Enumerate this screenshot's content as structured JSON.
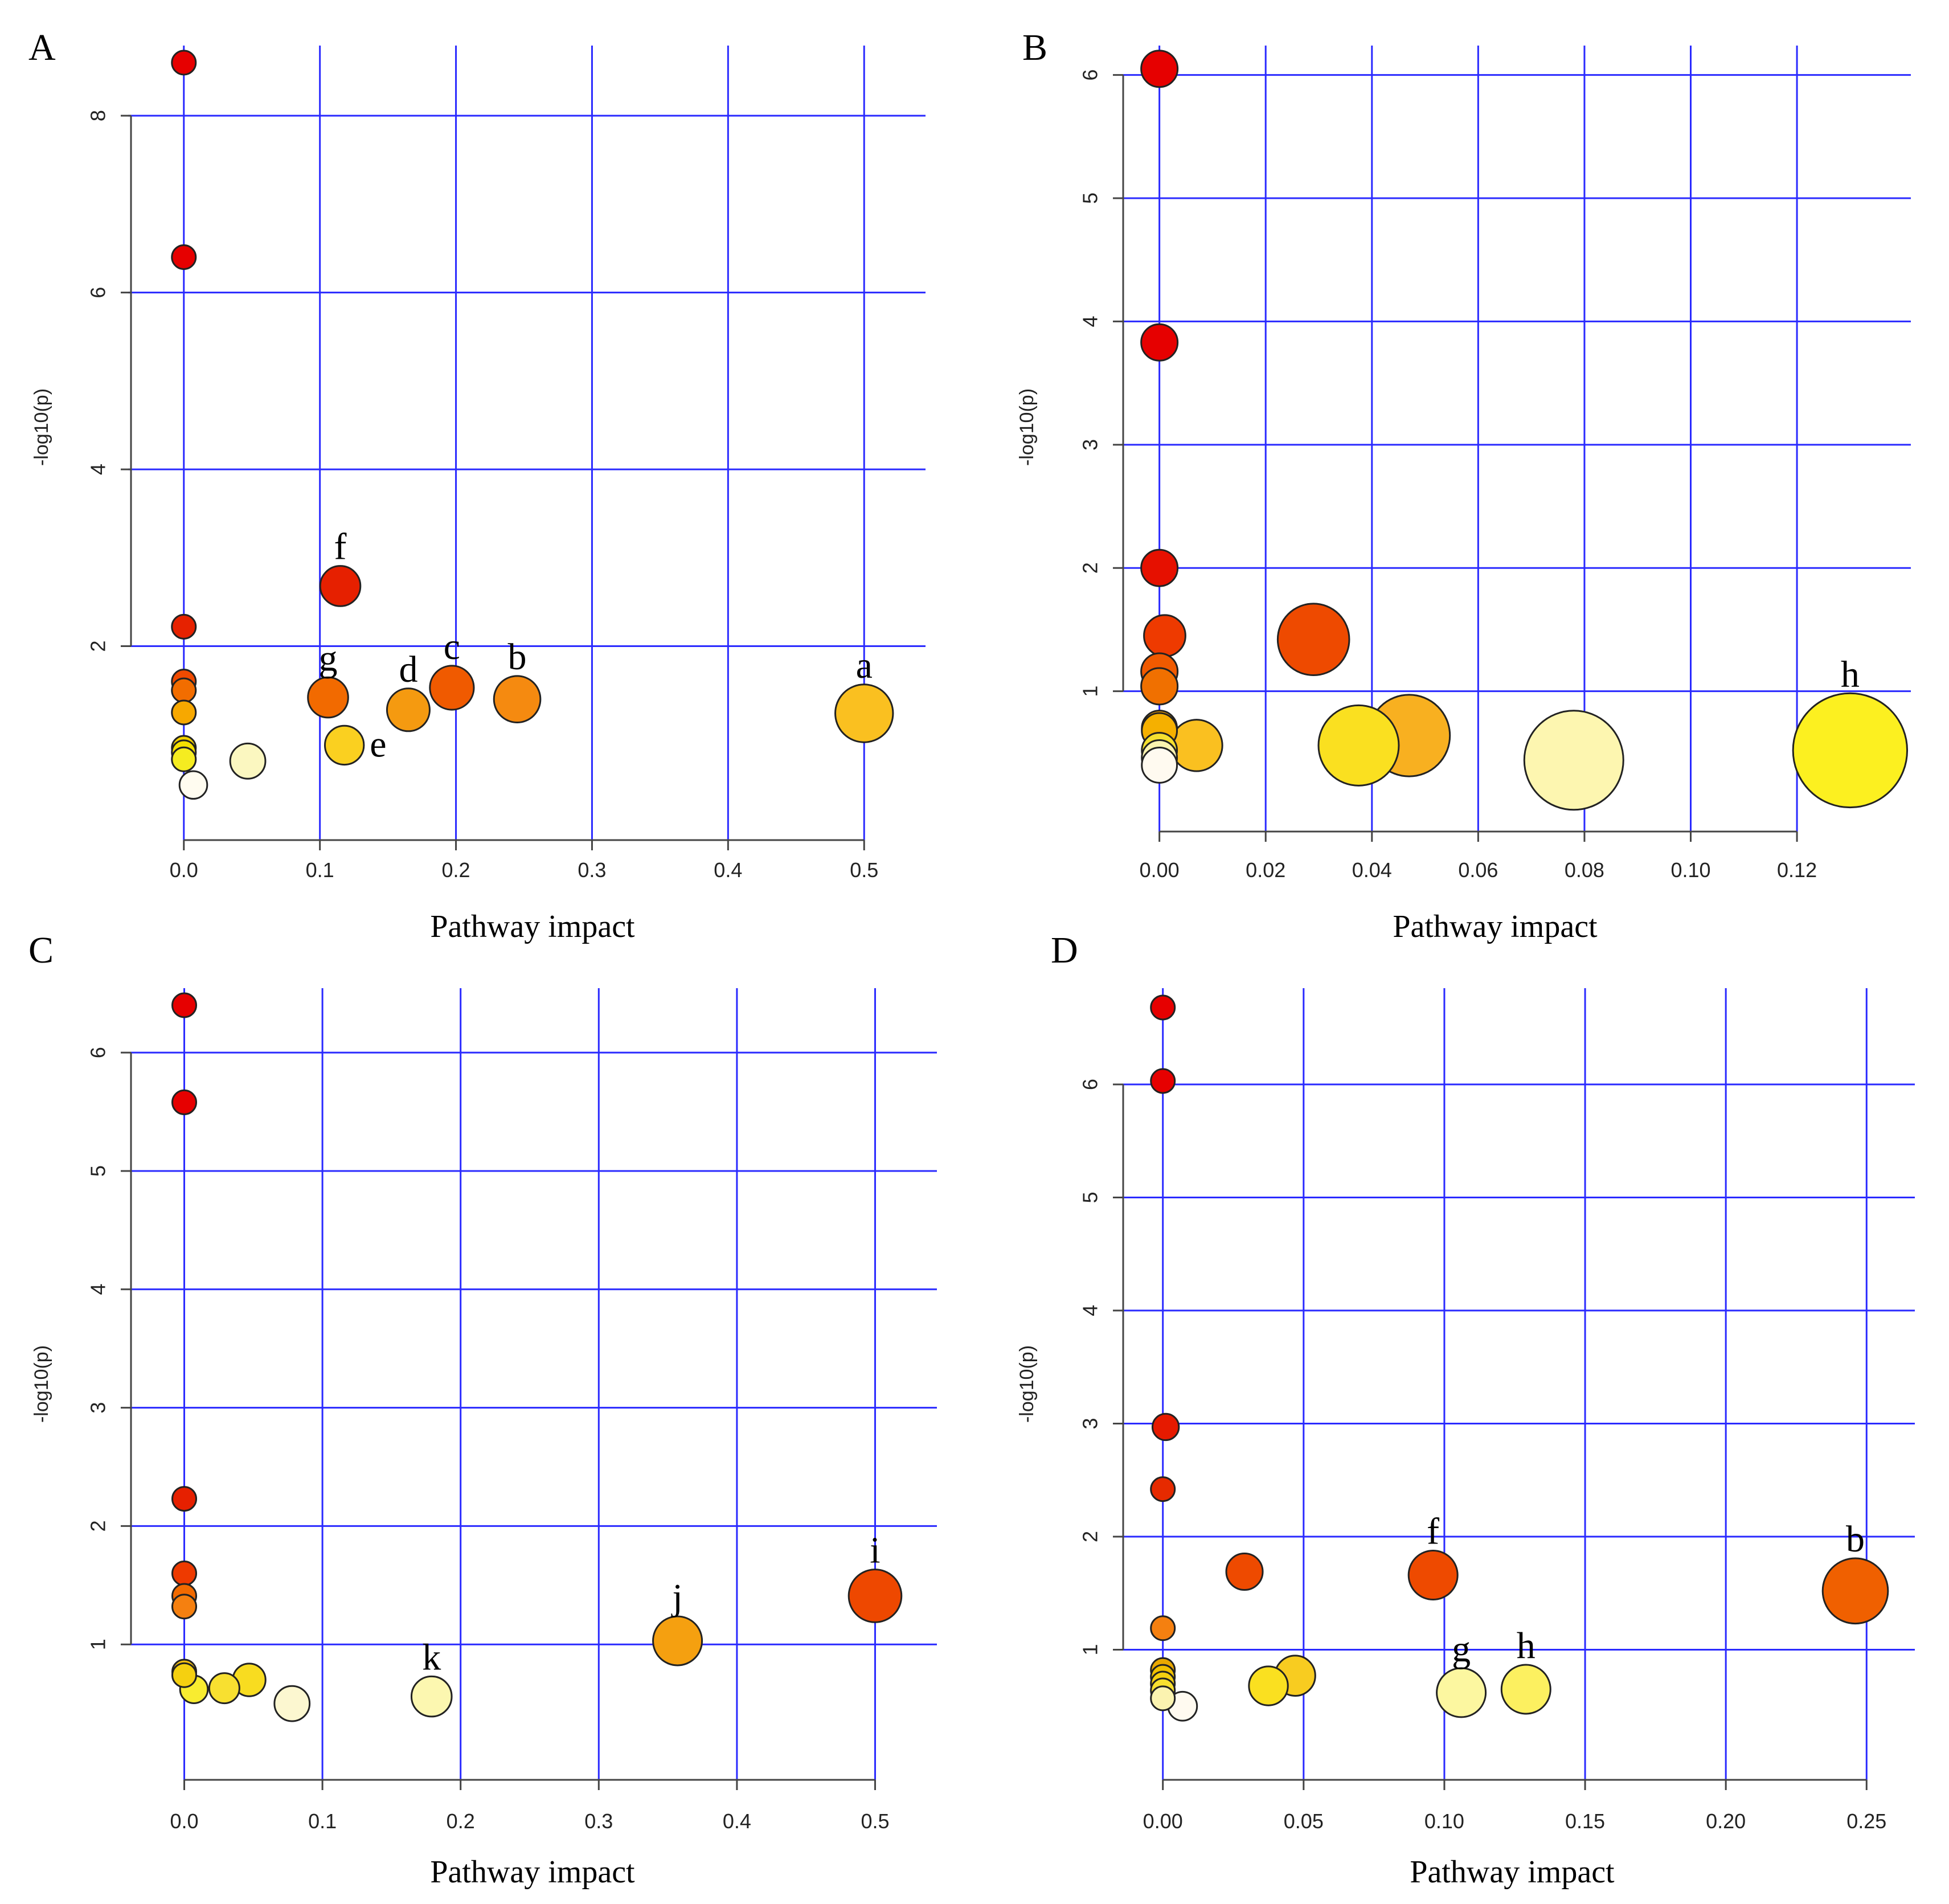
{
  "chart_data": [
    {
      "type": "scatter",
      "panel": "A",
      "xlabel": "Pathway impact",
      "ylabel": "-log10(p)",
      "xlim": [
        -0.02,
        0.52
      ],
      "ylim": [
        0,
        8.6
      ],
      "xticks": [
        0.0,
        0.1,
        0.2,
        0.3,
        0.4,
        0.5
      ],
      "xtick_labels": [
        "0.0",
        "0.1",
        "0.2",
        "0.3",
        "0.4",
        "0.5"
      ],
      "yticks": [
        2,
        4,
        6,
        8
      ],
      "ytick_labels": [
        "2",
        "4",
        "6",
        "8"
      ],
      "points": [
        {
          "x": 0.0,
          "y": 8.6,
          "size": 1,
          "color": "#e60000",
          "label": ""
        },
        {
          "x": 0.0,
          "y": 6.4,
          "size": 1,
          "color": "#e60000",
          "label": ""
        },
        {
          "x": 0.0,
          "y": 2.22,
          "size": 1,
          "color": "#e62200",
          "label": ""
        },
        {
          "x": 0.0,
          "y": 1.6,
          "size": 1,
          "color": "#f04a00",
          "label": ""
        },
        {
          "x": 0.0,
          "y": 1.5,
          "size": 1,
          "color": "#f26d00",
          "label": ""
        },
        {
          "x": 0.0,
          "y": 1.25,
          "size": 1,
          "color": "#f7a800",
          "label": ""
        },
        {
          "x": 0.0,
          "y": 0.85,
          "size": 1,
          "color": "#f2d000",
          "label": ""
        },
        {
          "x": 0.0,
          "y": 0.8,
          "size": 1,
          "color": "#f5e000",
          "label": ""
        },
        {
          "x": 0.0,
          "y": 0.72,
          "size": 1,
          "color": "#f5ec20",
          "label": ""
        },
        {
          "x": 0.007,
          "y": 0.43,
          "size": 1.3,
          "color": "#fffcf0",
          "label": ""
        },
        {
          "x": 0.047,
          "y": 0.7,
          "size": 1.9,
          "color": "#fbf7c0",
          "label": ""
        },
        {
          "x": 0.115,
          "y": 2.68,
          "size": 2.3,
          "color": "#e62000",
          "label": "f"
        },
        {
          "x": 0.106,
          "y": 1.42,
          "size": 2.3,
          "color": "#f26a00",
          "label": "g"
        },
        {
          "x": 0.165,
          "y": 1.28,
          "size": 2.5,
          "color": "#f59a10",
          "label": "d"
        },
        {
          "x": 0.118,
          "y": 0.88,
          "size": 2.2,
          "color": "#fad020",
          "label": "e"
        },
        {
          "x": 0.197,
          "y": 1.53,
          "size": 2.6,
          "color": "#f05a00",
          "label": "c"
        },
        {
          "x": 0.245,
          "y": 1.4,
          "size": 2.8,
          "color": "#f58a10",
          "label": "b"
        },
        {
          "x": 0.5,
          "y": 1.24,
          "size": 3.7,
          "color": "#fac020",
          "label": "a"
        }
      ]
    },
    {
      "type": "scatter",
      "panel": "B",
      "xlabel": "Pathway impact",
      "ylabel": "-log10(p)",
      "xlim": [
        -0.002,
        0.135
      ],
      "ylim": [
        0,
        6.1
      ],
      "xticks": [
        0.0,
        0.02,
        0.04,
        0.06,
        0.08,
        0.1,
        0.12
      ],
      "xtick_labels": [
        "0.00",
        "0.02",
        "0.04",
        "0.06",
        "0.08",
        "0.10",
        "0.12"
      ],
      "yticks": [
        1,
        2,
        3,
        4,
        5,
        6
      ],
      "ytick_labels": [
        "1",
        "2",
        "3",
        "4",
        "5",
        "6"
      ],
      "points": [
        {
          "x": 0.0,
          "y": 6.05,
          "size": 2,
          "color": "#e60000",
          "label": ""
        },
        {
          "x": 0.0,
          "y": 3.83,
          "size": 2,
          "color": "#e60000",
          "label": ""
        },
        {
          "x": 0.0,
          "y": 2.0,
          "size": 2,
          "color": "#e61000",
          "label": ""
        },
        {
          "x": 0.001,
          "y": 1.45,
          "size": 2.4,
          "color": "#ee3a00",
          "label": ""
        },
        {
          "x": 0.0,
          "y": 1.16,
          "size": 2,
          "color": "#f05a00",
          "label": ""
        },
        {
          "x": 0.0,
          "y": 1.04,
          "size": 2,
          "color": "#f07000",
          "label": ""
        },
        {
          "x": 0.0,
          "y": 0.7,
          "size": 1.9,
          "color": "#f0a000",
          "label": ""
        },
        {
          "x": 0.0,
          "y": 0.68,
          "size": 1.9,
          "color": "#f5b000",
          "label": ""
        },
        {
          "x": 0.0,
          "y": 0.52,
          "size": 1.9,
          "color": "#f5e030",
          "label": ""
        },
        {
          "x": 0.0,
          "y": 0.46,
          "size": 1.9,
          "color": "#fbf3b0",
          "label": ""
        },
        {
          "x": 0.0,
          "y": 0.4,
          "size": 1.9,
          "color": "#fffaf0",
          "label": ""
        },
        {
          "x": 0.007,
          "y": 0.56,
          "size": 3.2,
          "color": "#fac020",
          "label": ""
        },
        {
          "x": 0.029,
          "y": 1.42,
          "size": 4.8,
          "color": "#ee4a00",
          "label": ""
        },
        {
          "x": 0.0375,
          "y": 0.56,
          "size": 5.5,
          "color": "#fae020",
          "label": ""
        },
        {
          "x": 0.047,
          "y": 0.64,
          "size": 5.6,
          "color": "#f8b020",
          "label": ""
        },
        {
          "x": 0.078,
          "y": 0.44,
          "size": 7.0,
          "color": "#fdf6b0",
          "label": ""
        },
        {
          "x": 0.13,
          "y": 0.52,
          "size": 8.2,
          "color": "#fcf020",
          "label": "h"
        }
      ]
    },
    {
      "type": "scatter",
      "panel": "C",
      "xlabel": "Pathway impact",
      "ylabel": "-log10(p)",
      "xlim": [
        -0.02,
        0.52
      ],
      "ylim": [
        0,
        6.4
      ],
      "xticks": [
        0.0,
        0.1,
        0.2,
        0.3,
        0.4,
        0.5
      ],
      "xtick_labels": [
        "0.0",
        "0.1",
        "0.2",
        "0.3",
        "0.4",
        "0.5"
      ],
      "yticks": [
        1,
        2,
        3,
        4,
        5,
        6
      ],
      "ytick_labels": [
        "1",
        "2",
        "3",
        "4",
        "5",
        "6"
      ],
      "points": [
        {
          "x": 0.0,
          "y": 6.4,
          "size": 1,
          "color": "#e60000",
          "label": ""
        },
        {
          "x": 0.0,
          "y": 5.58,
          "size": 1,
          "color": "#e60000",
          "label": ""
        },
        {
          "x": 0.0,
          "y": 2.23,
          "size": 1,
          "color": "#e62000",
          "label": ""
        },
        {
          "x": 0.0,
          "y": 1.6,
          "size": 1,
          "color": "#ee3a00",
          "label": ""
        },
        {
          "x": 0.0,
          "y": 1.41,
          "size": 1,
          "color": "#f26a00",
          "label": ""
        },
        {
          "x": 0.0,
          "y": 1.32,
          "size": 1,
          "color": "#f58010",
          "label": ""
        },
        {
          "x": 0.0,
          "y": 0.77,
          "size": 1,
          "color": "#f5c010",
          "label": ""
        },
        {
          "x": 0.0,
          "y": 0.74,
          "size": 1,
          "color": "#f5d010",
          "label": ""
        },
        {
          "x": 0.007,
          "y": 0.62,
          "size": 1.3,
          "color": "#f8ec30",
          "label": ""
        },
        {
          "x": 0.029,
          "y": 0.63,
          "size": 1.5,
          "color": "#f8e030",
          "label": ""
        },
        {
          "x": 0.047,
          "y": 0.7,
          "size": 1.7,
          "color": "#f8dc20",
          "label": ""
        },
        {
          "x": 0.078,
          "y": 0.5,
          "size": 1.9,
          "color": "#fcf7d0",
          "label": ""
        },
        {
          "x": 0.179,
          "y": 0.56,
          "size": 2.3,
          "color": "#fcf7b0",
          "label": "k"
        },
        {
          "x": 0.357,
          "y": 1.03,
          "size": 3.0,
          "color": "#f5a010",
          "label": "j"
        },
        {
          "x": 0.5,
          "y": 1.41,
          "size": 3.3,
          "color": "#ee4800",
          "label": "i"
        }
      ]
    },
    {
      "type": "scatter",
      "panel": "D",
      "xlabel": "Pathway impact",
      "ylabel": "-log10(p)",
      "xlim": [
        -0.005,
        0.255
      ],
      "ylim": [
        0,
        6.7
      ],
      "xticks": [
        0.0,
        0.05,
        0.1,
        0.15,
        0.2,
        0.25
      ],
      "xtick_labels": [
        "0.00",
        "0.05",
        "0.10",
        "0.15",
        "0.20",
        "0.25"
      ],
      "yticks": [
        1,
        2,
        3,
        4,
        5,
        6
      ],
      "ytick_labels": [
        "1",
        "2",
        "3",
        "4",
        "5",
        "6"
      ],
      "points": [
        {
          "x": 0.0,
          "y": 6.68,
          "size": 1,
          "color": "#e60000",
          "label": ""
        },
        {
          "x": 0.0,
          "y": 6.03,
          "size": 1,
          "color": "#e60000",
          "label": ""
        },
        {
          "x": 0.001,
          "y": 2.97,
          "size": 1.2,
          "color": "#e61a00",
          "label": ""
        },
        {
          "x": 0.0,
          "y": 2.42,
          "size": 1,
          "color": "#e62a00",
          "label": ""
        },
        {
          "x": 0.0,
          "y": 1.19,
          "size": 1,
          "color": "#f58010",
          "label": ""
        },
        {
          "x": 0.0,
          "y": 0.82,
          "size": 1,
          "color": "#e9a800",
          "label": ""
        },
        {
          "x": 0.0,
          "y": 0.76,
          "size": 1,
          "color": "#f0c000",
          "label": ""
        },
        {
          "x": 0.0,
          "y": 0.7,
          "size": 1,
          "color": "#f5d010",
          "label": ""
        },
        {
          "x": 0.0,
          "y": 0.64,
          "size": 1,
          "color": "#f8e030",
          "label": ""
        },
        {
          "x": 0.0,
          "y": 0.57,
          "size": 1,
          "color": "#fbf3b0",
          "label": ""
        },
        {
          "x": 0.007,
          "y": 0.5,
          "size": 1.4,
          "color": "#fffaf0",
          "label": ""
        },
        {
          "x": 0.029,
          "y": 1.69,
          "size": 2.0,
          "color": "#ee4a00",
          "label": ""
        },
        {
          "x": 0.0375,
          "y": 0.68,
          "size": 2.2,
          "color": "#fae020",
          "label": ""
        },
        {
          "x": 0.047,
          "y": 0.77,
          "size": 2.3,
          "color": "#f8cc20",
          "label": ""
        },
        {
          "x": 0.096,
          "y": 1.66,
          "size": 3.0,
          "color": "#ee4a00",
          "label": "f"
        },
        {
          "x": 0.106,
          "y": 0.62,
          "size": 3.0,
          "color": "#fcf7a0",
          "label": "g"
        },
        {
          "x": 0.129,
          "y": 0.65,
          "size": 3.0,
          "color": "#fcf060",
          "label": "h"
        },
        {
          "x": 0.246,
          "y": 1.52,
          "size": 4.3,
          "color": "#f06000",
          "label": "b"
        }
      ]
    }
  ]
}
